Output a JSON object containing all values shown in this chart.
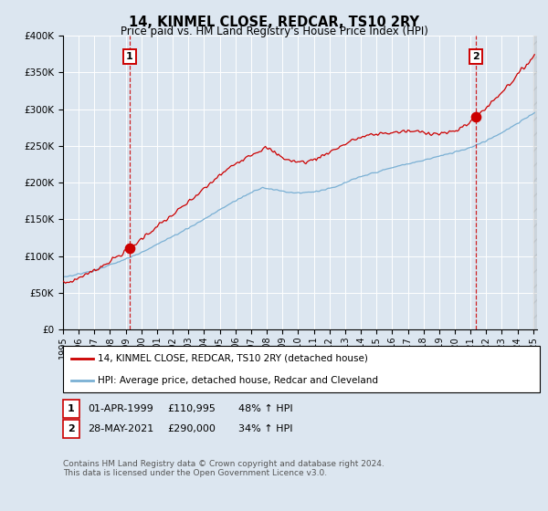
{
  "title": "14, KINMEL CLOSE, REDCAR, TS10 2RY",
  "subtitle": "Price paid vs. HM Land Registry's House Price Index (HPI)",
  "bg_color": "#dce6f0",
  "red_line_color": "#cc0000",
  "blue_line_color": "#7ab0d4",
  "sale1_price": 110995,
  "sale2_price": 290000,
  "legend_red": "14, KINMEL CLOSE, REDCAR, TS10 2RY (detached house)",
  "legend_blue": "HPI: Average price, detached house, Redcar and Cleveland",
  "footer": "Contains HM Land Registry data © Crown copyright and database right 2024.\nThis data is licensed under the Open Government Licence v3.0.",
  "ylim": [
    0,
    400000
  ],
  "yticks": [
    0,
    50000,
    100000,
    150000,
    200000,
    250000,
    300000,
    350000,
    400000
  ]
}
